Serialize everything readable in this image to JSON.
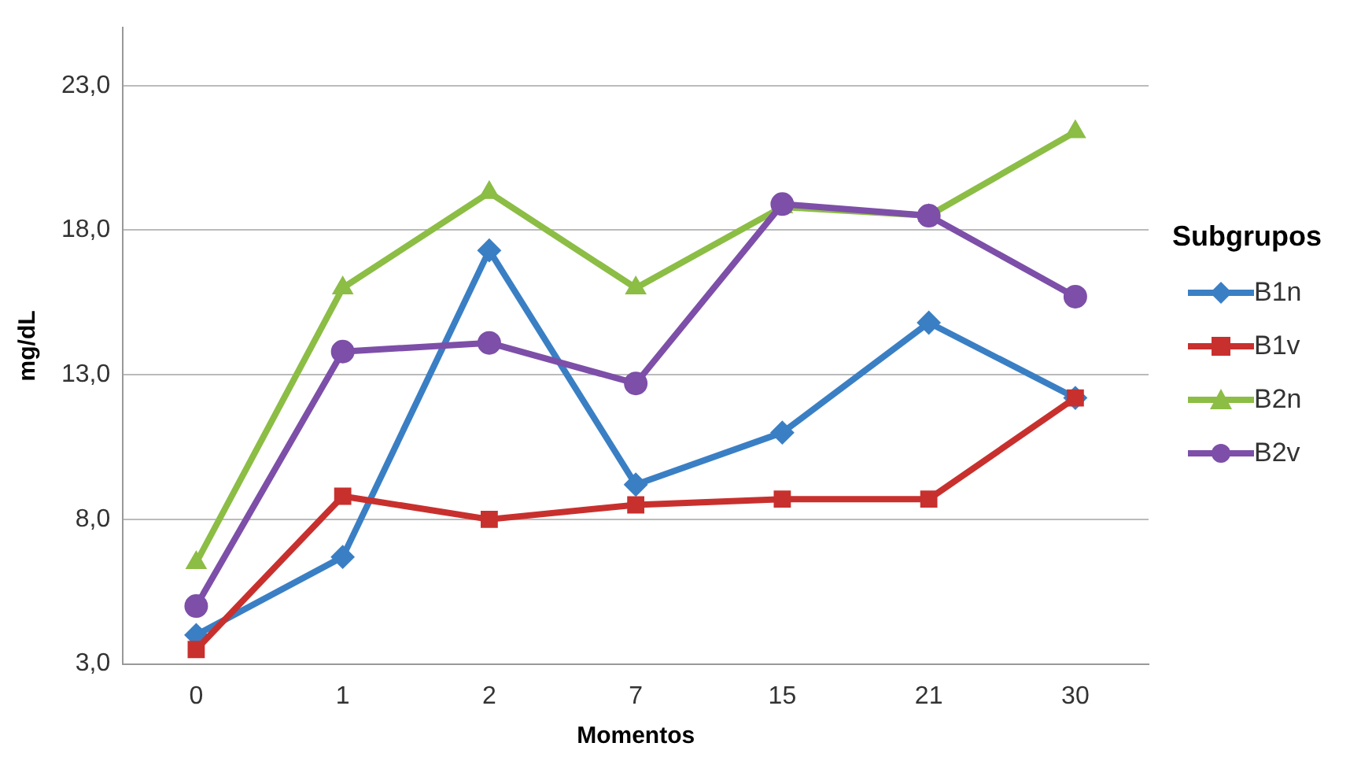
{
  "chart_data": {
    "type": "line",
    "xlabel": "Momentos",
    "ylabel": "mg/dL",
    "legend_title": "Subgrupos",
    "categories": [
      "0",
      "1",
      "2",
      "7",
      "15",
      "21",
      "30"
    ],
    "series": [
      {
        "name": "B1n",
        "color": "#3a7fc4",
        "marker": "diamond",
        "values": [
          4.0,
          6.7,
          17.3,
          9.2,
          11.0,
          14.8,
          12.2
        ]
      },
      {
        "name": "B1v",
        "color": "#c8302e",
        "marker": "square",
        "values": [
          3.5,
          8.8,
          8.0,
          8.5,
          8.7,
          8.7,
          12.2
        ]
      },
      {
        "name": "B2n",
        "color": "#8cbd45",
        "marker": "triangle",
        "values": [
          6.5,
          16.0,
          19.3,
          16.0,
          18.8,
          18.5,
          21.4
        ]
      },
      {
        "name": "B2v",
        "color": "#7d4fa8",
        "marker": "circle",
        "values": [
          5.0,
          13.8,
          14.1,
          12.7,
          18.9,
          18.5,
          15.7
        ]
      }
    ],
    "ylim": [
      3,
      25
    ],
    "yticks": [
      {
        "value": 3,
        "label": "3,0"
      },
      {
        "value": 8,
        "label": "8,0"
      },
      {
        "value": 13,
        "label": "13,0"
      },
      {
        "value": 18,
        "label": "18,0"
      },
      {
        "value": 23,
        "label": "23,0"
      }
    ],
    "grid": "y",
    "legend": "right",
    "line_style": "solid"
  }
}
